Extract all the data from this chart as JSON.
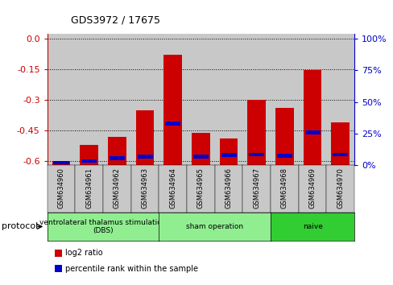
{
  "title": "GDS3972 / 17675",
  "samples": [
    "GSM634960",
    "GSM634961",
    "GSM634962",
    "GSM634963",
    "GSM634964",
    "GSM634965",
    "GSM634966",
    "GSM634967",
    "GSM634968",
    "GSM634969",
    "GSM634970"
  ],
  "log2_ratio": [
    -0.6,
    -0.52,
    -0.48,
    -0.35,
    -0.08,
    -0.46,
    -0.49,
    -0.3,
    -0.34,
    -0.155,
    -0.41
  ],
  "percentile_rank": [
    2.0,
    3.5,
    5.5,
    7.0,
    33.0,
    7.0,
    8.0,
    8.5,
    7.5,
    26.0,
    8.5
  ],
  "log2_color": "#cc0000",
  "percentile_color": "#0000cc",
  "ylim_left": [
    -0.62,
    0.02
  ],
  "ylim_right": [
    0,
    103.33
  ],
  "yticks_left": [
    0.0,
    -0.15,
    -0.3,
    -0.45,
    -0.6
  ],
  "yticks_right": [
    0,
    25,
    50,
    75,
    100
  ],
  "groups": [
    {
      "label": "ventrolateral thalamus stimulation\n(DBS)",
      "start": 0,
      "end": 3
    },
    {
      "label": "sham operation",
      "start": 4,
      "end": 7
    },
    {
      "label": "naive",
      "start": 8,
      "end": 10
    }
  ],
  "group_colors": [
    "#90ee90",
    "#90ee90",
    "#32cd32"
  ],
  "protocol_label": "protocol",
  "legend_log2": "log2 ratio",
  "legend_pct": "percentile rank within the sample",
  "bar_width": 0.65,
  "blue_bar_width": 0.55,
  "blue_bar_height": 0.018,
  "group_bg_color": "#c8c8c8",
  "plot_bg_color": "#ffffff",
  "border_color": "#000000"
}
